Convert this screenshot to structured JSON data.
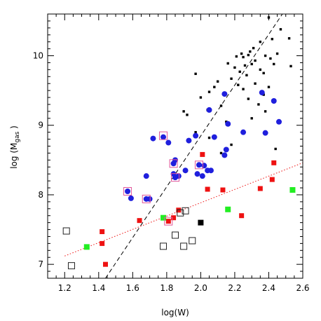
{
  "chart_data": {
    "type": "scatter",
    "title": "",
    "xlabel": "log(W)",
    "ylabel_main": "log  (M",
    "ylabel_sub": "gas",
    "ylabel_end": " )",
    "xlim": [
      1.1,
      2.6
    ],
    "ylim": [
      6.8,
      10.6
    ],
    "x_ticks": [
      1.2,
      1.4,
      1.6,
      1.8,
      2.0,
      2.2,
      2.4,
      2.6
    ],
    "x_tick_labels": [
      "1.2",
      "1.4",
      "1.6",
      "1.8",
      "2.0",
      "2.2",
      "2.4",
      "2.6"
    ],
    "y_ticks": [
      7,
      8,
      9,
      10
    ],
    "y_tick_labels": [
      "7",
      "8",
      "9",
      "10"
    ],
    "grid": false,
    "colors": {
      "black_points": "#000000",
      "blue_points": "#1f1fdd",
      "red_points": "#ee1111",
      "green_points": "#22ee22",
      "highlight_box": "#e0559a",
      "open_box": "#222222",
      "dashed_line": "#000000",
      "dotted_line": "#ee1111"
    },
    "series": [
      {
        "marker": "small-black-square",
        "points": [
          [
            2.4,
            10.55
          ],
          [
            2.47,
            10.38
          ],
          [
            2.42,
            10.24
          ],
          [
            2.52,
            10.25
          ],
          [
            2.35,
            10.2
          ],
          [
            2.31,
            10.11
          ],
          [
            2.29,
            10.06
          ],
          [
            2.24,
            10.03
          ],
          [
            2.28,
            10.01
          ],
          [
            2.45,
            10.03
          ],
          [
            2.38,
            10.0
          ],
          [
            2.21,
            9.99
          ],
          [
            2.25,
            9.98
          ],
          [
            2.41,
            9.96
          ],
          [
            2.32,
            9.93
          ],
          [
            2.16,
            9.89
          ],
          [
            2.3,
            9.88
          ],
          [
            2.26,
            9.86
          ],
          [
            2.43,
            9.88
          ],
          [
            2.53,
            9.85
          ],
          [
            2.2,
            9.83
          ],
          [
            2.35,
            9.8
          ],
          [
            2.23,
            9.77
          ],
          [
            2.37,
            9.75
          ],
          [
            1.97,
            9.74
          ],
          [
            2.27,
            9.72
          ],
          [
            2.18,
            9.67
          ],
          [
            2.1,
            9.63
          ],
          [
            2.32,
            9.6
          ],
          [
            2.22,
            9.58
          ],
          [
            2.08,
            9.55
          ],
          [
            2.4,
            9.55
          ],
          [
            2.25,
            9.52
          ],
          [
            2.05,
            9.48
          ],
          [
            2.37,
            9.44
          ],
          [
            2.28,
            9.38
          ],
          [
            2.0,
            9.4
          ],
          [
            2.34,
            9.3
          ],
          [
            2.12,
            9.28
          ],
          [
            2.04,
            9.22
          ],
          [
            2.38,
            9.2
          ],
          [
            1.9,
            9.2
          ],
          [
            2.3,
            9.1
          ],
          [
            2.15,
            9.05
          ],
          [
            1.92,
            9.15
          ],
          [
            1.97,
            8.9
          ],
          [
            2.05,
            8.82
          ],
          [
            2.18,
            8.72
          ],
          [
            2.12,
            8.6
          ],
          [
            2.44,
            8.66
          ]
        ]
      },
      {
        "marker": "blue-circle",
        "points": [
          [
            2.36,
            9.47
          ],
          [
            2.14,
            9.45
          ],
          [
            2.43,
            9.35
          ],
          [
            2.05,
            9.22
          ],
          [
            2.46,
            9.05
          ],
          [
            2.16,
            9.02
          ],
          [
            2.25,
            8.9
          ],
          [
            2.38,
            8.89
          ],
          [
            1.97,
            8.85
          ],
          [
            2.08,
            8.83
          ],
          [
            1.78,
            8.83
          ],
          [
            1.72,
            8.81
          ],
          [
            1.93,
            8.78
          ],
          [
            1.81,
            8.75
          ],
          [
            2.15,
            8.65
          ],
          [
            2.14,
            8.57
          ],
          [
            1.84,
            8.45
          ],
          [
            1.85,
            8.5
          ],
          [
            1.99,
            8.43
          ],
          [
            2.02,
            8.42
          ],
          [
            2.04,
            8.35
          ],
          [
            2.06,
            8.35
          ],
          [
            1.91,
            8.35
          ],
          [
            1.98,
            8.3
          ],
          [
            1.84,
            8.3
          ],
          [
            1.87,
            8.27
          ],
          [
            1.85,
            8.25
          ],
          [
            2.01,
            8.27
          ],
          [
            1.68,
            8.27
          ],
          [
            1.57,
            8.05
          ],
          [
            1.59,
            7.95
          ],
          [
            1.68,
            7.94
          ],
          [
            1.7,
            7.94
          ]
        ]
      },
      {
        "marker": "pink-box-outline",
        "points": [
          [
            1.78,
            8.85
          ],
          [
            1.84,
            8.45
          ],
          [
            1.85,
            8.25
          ],
          [
            1.57,
            8.05
          ],
          [
            1.68,
            7.94
          ],
          [
            1.81,
            7.62
          ],
          [
            1.99,
            8.43
          ]
        ]
      },
      {
        "marker": "red-square",
        "points": [
          [
            2.01,
            8.58
          ],
          [
            2.43,
            8.46
          ],
          [
            2.42,
            8.22
          ],
          [
            2.35,
            8.09
          ],
          [
            2.04,
            8.08
          ],
          [
            2.13,
            8.07
          ],
          [
            1.87,
            7.78
          ],
          [
            2.24,
            7.7
          ],
          [
            1.84,
            7.67
          ],
          [
            1.64,
            7.63
          ],
          [
            1.81,
            7.62
          ],
          [
            1.42,
            7.47
          ],
          [
            1.42,
            7.3
          ],
          [
            1.44,
            7.0
          ]
        ]
      },
      {
        "marker": "green-square",
        "points": [
          [
            2.54,
            8.07
          ],
          [
            2.16,
            7.79
          ],
          [
            1.78,
            7.67
          ],
          [
            1.33,
            7.25
          ]
        ]
      },
      {
        "marker": "black-filled-big-square",
        "points": [
          [
            2.0,
            7.6
          ]
        ]
      },
      {
        "marker": "open-square",
        "points": [
          [
            1.91,
            7.77
          ],
          [
            1.88,
            7.74
          ],
          [
            1.21,
            7.48
          ],
          [
            1.85,
            7.42
          ],
          [
            1.95,
            7.34
          ],
          [
            1.78,
            7.26
          ],
          [
            1.9,
            7.26
          ],
          [
            1.24,
            6.98
          ]
        ]
      }
    ],
    "lines": [
      {
        "style": "dashed",
        "color": "#000000",
        "points": [
          [
            1.44,
            6.8
          ],
          [
            2.48,
            10.6
          ]
        ]
      },
      {
        "style": "dotted",
        "color": "#ee1111",
        "points": [
          [
            1.2,
            7.12
          ],
          [
            2.6,
            8.46
          ]
        ]
      }
    ]
  }
}
